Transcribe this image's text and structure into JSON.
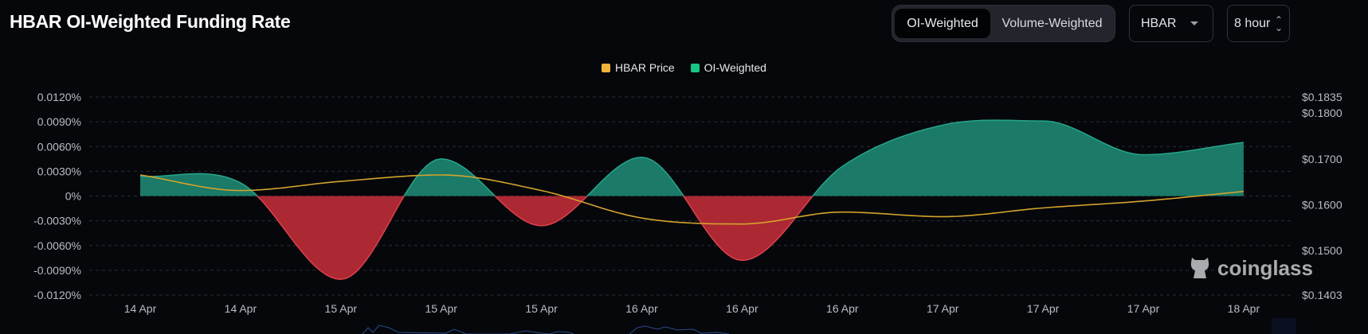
{
  "header": {
    "title": "HBAR OI-Weighted Funding Rate",
    "toggle": [
      "OI-Weighted",
      "Volume-Weighted"
    ],
    "active_toggle": "OI-Weighted",
    "symbol": "HBAR",
    "interval": "8 hour"
  },
  "watermark": "coinglass",
  "colors": {
    "positive": "#1b7a68",
    "positive_line": "#26a68c",
    "negative": "#ac2833",
    "negative_line": "#e0404c",
    "price": "#d4a32c",
    "legend_oi": "#16c784",
    "legend_price": "#f0b43c"
  },
  "chart_data": {
    "type": "area",
    "title": "HBAR OI-Weighted Funding Rate",
    "legend": [
      "HBAR Price",
      "OI-Weighted"
    ],
    "legend_placement": "top-center",
    "x": [
      "14 Apr",
      "14 Apr",
      "15 Apr",
      "15 Apr",
      "15 Apr",
      "16 Apr",
      "16 Apr",
      "16 Apr",
      "17 Apr",
      "17 Apr",
      "17 Apr",
      "18 Apr"
    ],
    "series": [
      {
        "name": "OI-Weighted",
        "axis": "left",
        "unit": "%",
        "values": [
          0.0024,
          0.0016,
          -0.0101,
          0.0045,
          -0.0036,
          0.0047,
          -0.0078,
          0.0036,
          0.0086,
          0.0091,
          0.005,
          0.0065
        ]
      },
      {
        "name": "HBAR Price",
        "axis": "right",
        "unit": "$",
        "values": [
          0.1665,
          0.1631,
          0.1651,
          0.1665,
          0.1631,
          0.1571,
          0.1558,
          0.1584,
          0.1574,
          0.1593,
          0.1608,
          0.1629
        ]
      }
    ],
    "y_left": {
      "ticks": [
        "0.0120%",
        "0.0090%",
        "0.0060%",
        "0.0030%",
        "0%",
        "-0.0030%",
        "-0.0060%",
        "-0.0090%",
        "-0.0120%"
      ],
      "range": [
        -0.012,
        0.012
      ]
    },
    "y_right": {
      "ticks": [
        "$0.1835",
        "$0.1800",
        "$0.1700",
        "$0.1600",
        "$0.1500",
        "$0.1403"
      ],
      "tick_values": [
        0.1835,
        0.18,
        0.17,
        0.16,
        0.15,
        0.1403
      ],
      "range": [
        0.1403,
        0.1835
      ]
    },
    "grid": true
  }
}
